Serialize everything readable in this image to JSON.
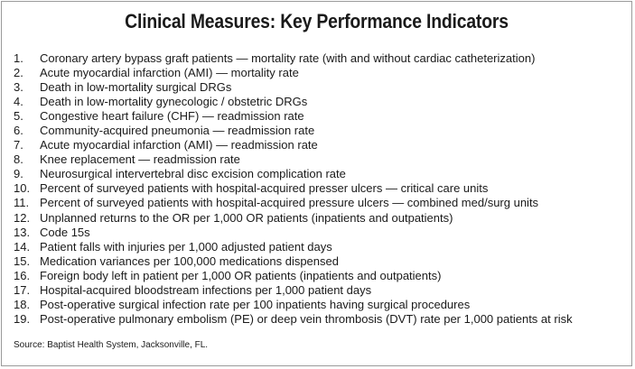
{
  "title": "Clinical Measures: Key Performance Indicators",
  "items": [
    {
      "num": "1.",
      "text": "Coronary artery bypass graft patients — mortality rate (with and without cardiac catheterization)"
    },
    {
      "num": "2.",
      "text": "Acute myocardial infarction (AMI) — mortality rate"
    },
    {
      "num": "3.",
      "text": "Death in low-mortality surgical DRGs"
    },
    {
      "num": "4.",
      "text": "Death in low-mortality gynecologic / obstetric DRGs"
    },
    {
      "num": "5.",
      "text": "Congestive heart failure (CHF) — readmission rate"
    },
    {
      "num": "6.",
      "text": "Community-acquired pneumonia — readmission rate"
    },
    {
      "num": "7.",
      "text": "Acute myocardial infarction (AMI) — readmission rate"
    },
    {
      "num": "8.",
      "text": "Knee replacement — readmission rate"
    },
    {
      "num": "9.",
      "text": "Neurosurgical intervertebral disc excision complication rate"
    },
    {
      "num": "10.",
      "text": "Percent of surveyed patients with hospital-acquired presser ulcers — critical care units"
    },
    {
      "num": "11.",
      "text": "Percent of surveyed patients with hospital-acquired pressure ulcers — combined med/surg units"
    },
    {
      "num": "12.",
      "text": "Unplanned returns to the OR per 1,000 OR patients (inpatients and outpatients)"
    },
    {
      "num": "13.",
      "text": "Code 15s"
    },
    {
      "num": "14.",
      "text": "Patient falls with injuries per 1,000 adjusted patient days"
    },
    {
      "num": "15.",
      "text": "Medication variances per 100,000 medications dispensed"
    },
    {
      "num": "16.",
      "text": "Foreign body left in patient per 1,000 OR patients (inpatients and outpatients)"
    },
    {
      "num": "17.",
      "text": "Hospital-acquired bloodstream infections per 1,000 patient days"
    },
    {
      "num": "18.",
      "text": "Post-operative surgical infection rate per 100 inpatients having surgical procedures"
    },
    {
      "num": "19.",
      "text": "Post-operative pulmonary embolism (PE) or deep vein thrombosis (DVT) rate per 1,000 patients at risk"
    }
  ],
  "source": "Source: Baptist Health System, Jacksonville, FL."
}
